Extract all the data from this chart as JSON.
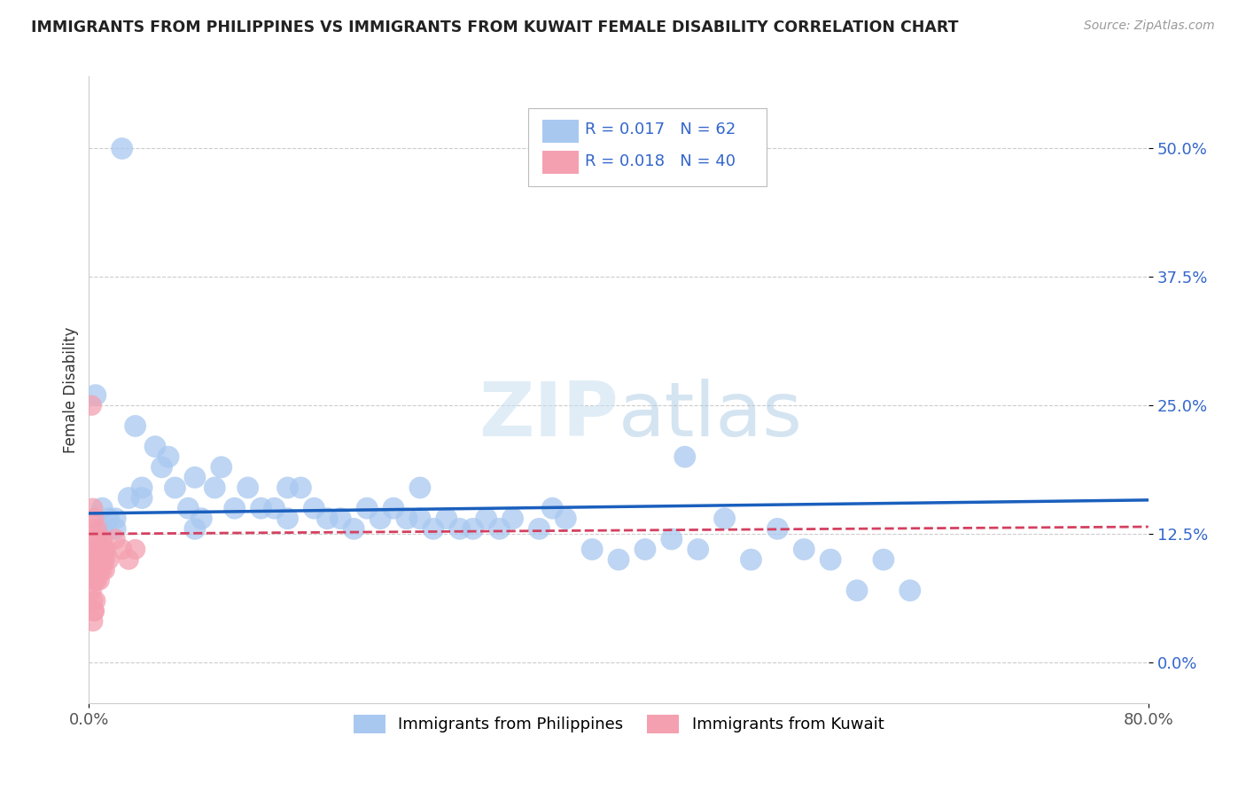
{
  "title": "IMMIGRANTS FROM PHILIPPINES VS IMMIGRANTS FROM KUWAIT FEMALE DISABILITY CORRELATION CHART",
  "source": "Source: ZipAtlas.com",
  "ylabel": "Female Disability",
  "xlim": [
    0.0,
    0.8
  ],
  "ylim": [
    -0.04,
    0.57
  ],
  "yticks": [
    0.0,
    0.125,
    0.25,
    0.375,
    0.5
  ],
  "ytick_labels": [
    "0.0%",
    "12.5%",
    "25.0%",
    "37.5%",
    "50.0%"
  ],
  "xticks": [
    0.0,
    0.8
  ],
  "xtick_labels": [
    "0.0%",
    "80.0%"
  ],
  "philippines_R": 0.017,
  "philippines_N": 62,
  "kuwait_R": 0.018,
  "kuwait_N": 40,
  "philippines_color": "#a8c8f0",
  "kuwait_color": "#f4a0b0",
  "philippines_line_color": "#1a5fbd",
  "kuwait_line_color": "#d44060",
  "philippines_x": [
    0.025,
    0.005,
    0.035,
    0.05,
    0.06,
    0.08,
    0.1,
    0.12,
    0.14,
    0.01,
    0.015,
    0.02,
    0.03,
    0.04,
    0.055,
    0.065,
    0.075,
    0.085,
    0.095,
    0.11,
    0.13,
    0.15,
    0.16,
    0.17,
    0.18,
    0.19,
    0.2,
    0.21,
    0.22,
    0.23,
    0.24,
    0.25,
    0.26,
    0.27,
    0.28,
    0.29,
    0.3,
    0.31,
    0.32,
    0.34,
    0.36,
    0.38,
    0.4,
    0.42,
    0.44,
    0.46,
    0.48,
    0.5,
    0.52,
    0.54,
    0.56,
    0.58,
    0.6,
    0.62,
    0.45,
    0.35,
    0.25,
    0.15,
    0.08,
    0.04,
    0.02,
    0.01
  ],
  "philippines_y": [
    0.5,
    0.26,
    0.23,
    0.21,
    0.2,
    0.18,
    0.19,
    0.17,
    0.15,
    0.15,
    0.14,
    0.14,
    0.16,
    0.17,
    0.19,
    0.17,
    0.15,
    0.14,
    0.17,
    0.15,
    0.15,
    0.14,
    0.17,
    0.15,
    0.14,
    0.14,
    0.13,
    0.15,
    0.14,
    0.15,
    0.14,
    0.14,
    0.13,
    0.14,
    0.13,
    0.13,
    0.14,
    0.13,
    0.14,
    0.13,
    0.14,
    0.11,
    0.1,
    0.11,
    0.12,
    0.11,
    0.14,
    0.1,
    0.13,
    0.11,
    0.1,
    0.07,
    0.1,
    0.07,
    0.2,
    0.15,
    0.17,
    0.17,
    0.13,
    0.16,
    0.13,
    0.13
  ],
  "kuwait_x": [
    0.002,
    0.003,
    0.003,
    0.004,
    0.004,
    0.005,
    0.005,
    0.006,
    0.006,
    0.007,
    0.007,
    0.008,
    0.008,
    0.009,
    0.009,
    0.01,
    0.01,
    0.011,
    0.011,
    0.012,
    0.012,
    0.013,
    0.003,
    0.004,
    0.005,
    0.006,
    0.007,
    0.008,
    0.015,
    0.02,
    0.025,
    0.03,
    0.035,
    0.002,
    0.003,
    0.004,
    0.005,
    0.003,
    0.004,
    0.006
  ],
  "kuwait_y": [
    0.25,
    0.15,
    0.13,
    0.14,
    0.1,
    0.11,
    0.12,
    0.13,
    0.09,
    0.12,
    0.1,
    0.11,
    0.09,
    0.1,
    0.11,
    0.12,
    0.09,
    0.1,
    0.11,
    0.09,
    0.1,
    0.11,
    0.08,
    0.09,
    0.08,
    0.1,
    0.09,
    0.08,
    0.1,
    0.12,
    0.11,
    0.1,
    0.11,
    0.07,
    0.06,
    0.05,
    0.06,
    0.04,
    0.05,
    0.08
  ]
}
